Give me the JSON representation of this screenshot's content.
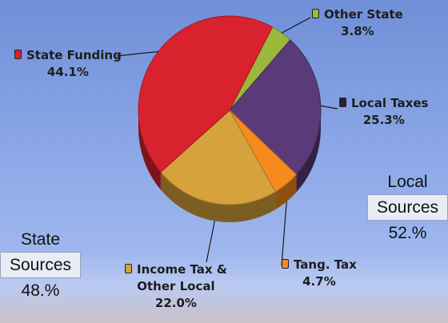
{
  "chart_data": {
    "type": "pie",
    "title": "",
    "slices": [
      {
        "label": "Other State",
        "value": 3.8,
        "display": "3.8%",
        "color": "#9cb83a"
      },
      {
        "label": "Local Taxes",
        "value": 25.3,
        "display": "25.3%",
        "color": "#5a3a78"
      },
      {
        "label": "Tang. Tax",
        "value": 4.7,
        "display": "4.7%",
        "color": "#f58a1e"
      },
      {
        "label": "Income Tax & Other Local",
        "label_lines": [
          "Income Tax &",
          "Other Local"
        ],
        "value": 22.0,
        "display": "22.0%",
        "color": "#d6a23c"
      },
      {
        "label": "State Funding",
        "value": 44.1,
        "display": "44.1%",
        "color": "#d8222e"
      }
    ],
    "groups": [
      {
        "lines": [
          "Local",
          "Sources"
        ],
        "percent": "52.%"
      },
      {
        "lines": [
          "State",
          "Sources"
        ],
        "percent": "48.%"
      }
    ]
  }
}
